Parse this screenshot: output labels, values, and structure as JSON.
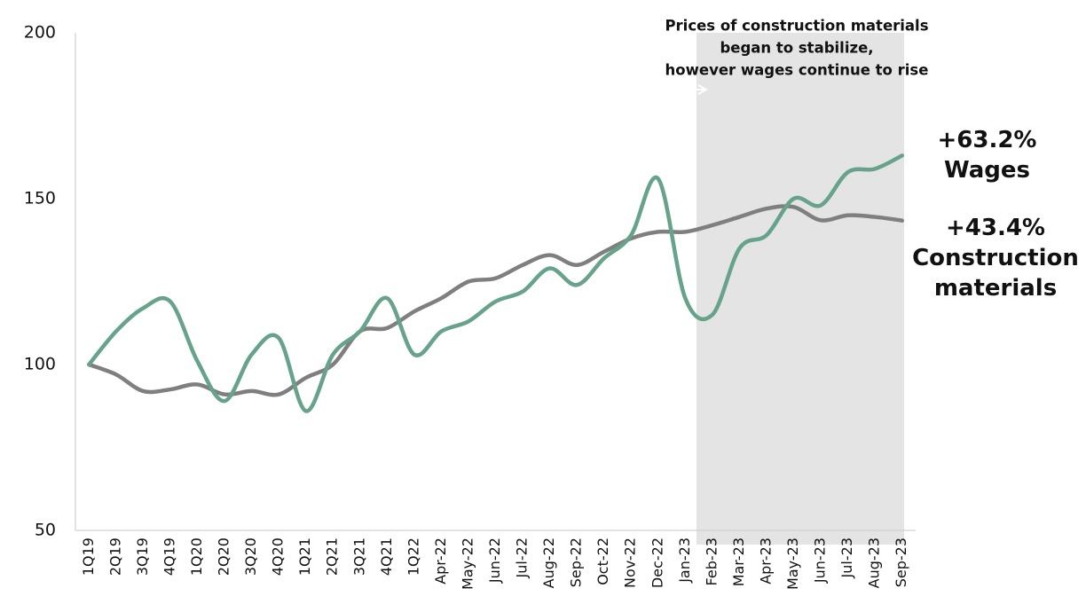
{
  "chart_data": {
    "type": "line",
    "categories": [
      "1Q19",
      "2Q19",
      "3Q19",
      "4Q19",
      "1Q20",
      "2Q20",
      "3Q20",
      "4Q20",
      "1Q21",
      "2Q21",
      "3Q21",
      "4Q21",
      "1Q22",
      "Apr-22",
      "May-22",
      "Jun-22",
      "Jul-22",
      "Aug-22",
      "Sep-22",
      "Oct-22",
      "Nov-22",
      "Dec-22",
      "Jan-23",
      "Feb-23",
      "Mar-23",
      "Apr-23",
      "May-23",
      "Jun-23",
      "Jul-23",
      "Aug-23",
      "Sep-23"
    ],
    "series": [
      {
        "name": "Wages",
        "end_label": "+63.2%",
        "color": "#66a38a",
        "values": [
          100,
          110,
          117,
          119,
          101,
          89,
          103,
          108,
          86,
          103,
          110,
          120,
          103,
          110,
          113,
          119,
          122,
          129,
          124,
          132,
          139,
          156,
          120,
          115,
          135,
          139,
          150,
          148,
          158,
          159,
          163
        ]
      },
      {
        "name": "Construction materials",
        "end_label": "+43.4%",
        "color": "#7f7f7f",
        "values": [
          100,
          97,
          92,
          92.5,
          94,
          91,
          92,
          91,
          96,
          100,
          110,
          111,
          116,
          120,
          125,
          126,
          130,
          133,
          130,
          134,
          138,
          140,
          140,
          142,
          144.5,
          147,
          147.5,
          143.5,
          145,
          144.5,
          143.4
        ]
      }
    ],
    "annotation": [
      "Prices of construction materials",
      "began to stabilize,",
      "however wages continue to rise"
    ],
    "ylim": [
      50,
      200
    ],
    "yticks": [
      50,
      100,
      150,
      200
    ],
    "grid": false
  }
}
